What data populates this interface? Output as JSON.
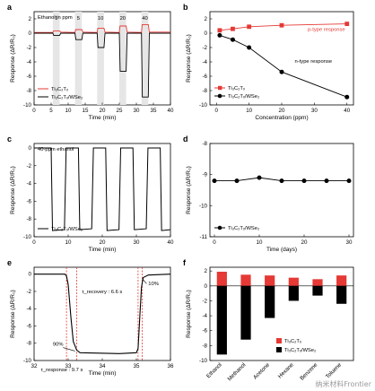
{
  "chart_data": [
    {
      "panel": "a",
      "type": "line",
      "xlabel": "Time (min)",
      "ylabel": "Response (ΔR/R₀)",
      "xlim": [
        0,
        40
      ],
      "ylim": [
        -10,
        3
      ],
      "xticks": [
        "0",
        "5",
        "10",
        "15",
        "20",
        "25",
        "30",
        "35",
        "40"
      ],
      "yticks": [
        "2",
        "0",
        "-2",
        "-4",
        "-6",
        "-8",
        "-10"
      ],
      "annotation": "Ethanol in ppm",
      "pulses": [
        {
          "label": "1",
          "start": 5.5,
          "end": 7.5,
          "p": 0.3,
          "n": -0.3
        },
        {
          "label": "5",
          "start": 12,
          "end": 14,
          "p": 0.5,
          "n": -0.9
        },
        {
          "label": "10",
          "start": 18.5,
          "end": 20.5,
          "p": 0.7,
          "n": -2.0
        },
        {
          "label": "20",
          "start": 25,
          "end": 27,
          "p": 1.0,
          "n": -5.3
        },
        {
          "label": "40",
          "start": 31.5,
          "end": 33.5,
          "p": 1.2,
          "n": -8.9
        }
      ],
      "series": [
        {
          "name": "Ti₃C₂Tₓ",
          "color": "#e53935"
        },
        {
          "name": "Ti₃C₂Tₓ/WSe₂",
          "color": "#000000"
        }
      ]
    },
    {
      "panel": "b",
      "type": "line",
      "xlabel": "Concentration (ppm)",
      "ylabel": "Response (ΔR/R₀)",
      "xlim": [
        0,
        40
      ],
      "ylim": [
        -10,
        3
      ],
      "xticks": [
        "0",
        "10",
        "20",
        "30",
        "40"
      ],
      "yticks": [
        "2",
        "0",
        "-2",
        "-4",
        "-6",
        "-8",
        "-10"
      ],
      "x": [
        1,
        5,
        10,
        20,
        40
      ],
      "series": [
        {
          "name": "Ti₃C₂Tₓ",
          "color": "#e53935",
          "marker": "square",
          "values": [
            0.4,
            0.6,
            0.9,
            1.1,
            1.3
          ]
        },
        {
          "name": "Ti₃C₂Tₓ/WSe₂",
          "color": "#000000",
          "marker": "circle",
          "values": [
            -0.3,
            -0.9,
            -2.0,
            -5.4,
            -8.9
          ]
        }
      ],
      "annotations": [
        "p-type response",
        "n-type response"
      ]
    },
    {
      "panel": "c",
      "type": "line",
      "xlabel": "Time (min)",
      "ylabel": "Response (ΔR/R₀)",
      "xlim": [
        0,
        40
      ],
      "ylim": [
        -10,
        0.5
      ],
      "xticks": [
        "0",
        "10",
        "20",
        "30",
        "40"
      ],
      "yticks": [
        "0",
        "-2",
        "-4",
        "-6",
        "-8",
        "-10"
      ],
      "annotation": "40-ppm ethanol",
      "pulses": [
        {
          "start": 5,
          "end": 9,
          "n": -9.3
        },
        {
          "start": 13,
          "end": 17,
          "n": -9.2
        },
        {
          "start": 21,
          "end": 25,
          "n": -9.3
        },
        {
          "start": 29,
          "end": 33,
          "n": -9.2
        },
        {
          "start": 37,
          "end": 41,
          "n": -9.3
        }
      ],
      "series": [
        {
          "name": "Ti₃C₂Tₓ/WSe₂",
          "color": "#000000"
        }
      ]
    },
    {
      "panel": "d",
      "type": "line",
      "xlabel": "Time (days)",
      "ylabel": "Response (ΔR/R₀)",
      "xlim": [
        -1,
        31
      ],
      "ylim": [
        -11,
        -8
      ],
      "xticks": [
        "0",
        "10",
        "20",
        "30"
      ],
      "yticks": [
        "-8",
        "-9",
        "-10",
        "-11"
      ],
      "x": [
        0,
        5,
        10,
        15,
        20,
        25,
        30
      ],
      "series": [
        {
          "name": "Ti₃C₂Tₓ/WSe₂",
          "color": "#000000",
          "marker": "circle",
          "values": [
            -9.2,
            -9.2,
            -9.1,
            -9.2,
            -9.2,
            -9.2,
            -9.2
          ]
        }
      ]
    },
    {
      "panel": "e",
      "type": "line",
      "xlabel": "Time (min)",
      "ylabel": "Response (ΔR/R₀)",
      "xlim": [
        32,
        36
      ],
      "ylim": [
        -10,
        0.8
      ],
      "xticks": [
        "32",
        "33",
        "34",
        "35",
        "36"
      ],
      "yticks": [
        "0",
        "-2",
        "-4",
        "-6",
        "-8",
        "-10"
      ],
      "points": [
        [
          32.0,
          0.0
        ],
        [
          32.9,
          0.0
        ],
        [
          32.95,
          -0.2
        ],
        [
          33.0,
          -1.2
        ],
        [
          33.08,
          -5.0
        ],
        [
          33.15,
          -7.8
        ],
        [
          33.25,
          -8.8
        ],
        [
          33.35,
          -9.1
        ],
        [
          34.5,
          -9.2
        ],
        [
          35.0,
          -9.1
        ],
        [
          35.05,
          -8.6
        ],
        [
          35.1,
          -5.0
        ],
        [
          35.15,
          -1.5
        ],
        [
          35.2,
          -0.4
        ],
        [
          35.35,
          -0.1
        ],
        [
          36.0,
          0.0
        ]
      ],
      "vlines": [
        32.95,
        33.25,
        35.05,
        35.17
      ],
      "annotations": {
        "p90": "90%",
        "p10": "10%",
        "tresp": "τ_response : 9.7 s",
        "trec": "τ_recovery : 6.6 s"
      },
      "series": [
        {
          "name": "Ti₃C₂Tₓ/WSe₂",
          "color": "#000000"
        }
      ]
    },
    {
      "panel": "f",
      "type": "bar",
      "ylabel": "Response (ΔR/R₀)",
      "ylim": [
        -10,
        2.5
      ],
      "yticks": [
        "2",
        "0",
        "-2",
        "-4",
        "-6",
        "-8",
        "-10"
      ],
      "categories": [
        "Ethanol",
        "Methanol",
        "Acetone",
        "Hexane",
        "Benzene",
        "Toluene"
      ],
      "series": [
        {
          "name": "Ti₃C₂Tₓ",
          "color": "#e53935",
          "values": [
            1.9,
            1.5,
            1.4,
            1.1,
            0.9,
            1.4
          ]
        },
        {
          "name": "Ti₃C₂Tₓ/WSe₂",
          "color": "#000000",
          "values": [
            -9.2,
            -7.2,
            -4.3,
            -2.0,
            -1.3,
            -2.4
          ]
        }
      ]
    }
  ],
  "watermark": "纳米材料Frontier"
}
